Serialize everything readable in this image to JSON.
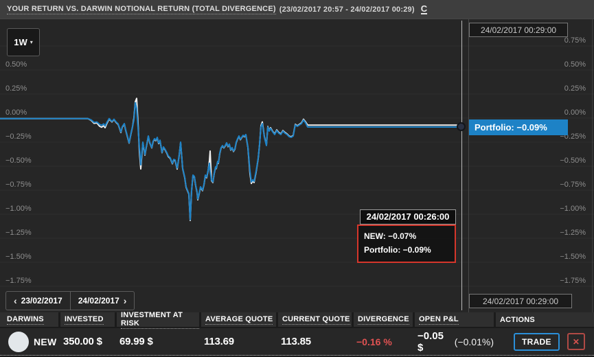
{
  "colors": {
    "accent_blue": "#1d82c6",
    "line_white": "#f0f0f0",
    "negative_red": "#e05252",
    "tooltip_red": "#d6362b"
  },
  "header": {
    "title": "YOUR RETURN VS. DARWIN NOTIONAL RETURN (TOTAL DIVERGENCE)",
    "range": "(23/02/2017 20:57 - 24/02/2017 00:29)",
    "refresh_label": "C"
  },
  "toolbar": {
    "period": "1W",
    "caret": "▾"
  },
  "crosshair": {
    "top_time": "24/02/2017 00:29:00",
    "bottom_time": "24/02/2017 00:29:00",
    "portfolio_badge": "Portfolio: −0.09%"
  },
  "tooltip": {
    "time": "24/02/2017 00:26:00",
    "rows": [
      "NEW: −0.07%",
      "Portfolio: −0.09%"
    ]
  },
  "date_nav": {
    "prev_chevron": "‹",
    "prev": "23/02/2017",
    "next": "24/02/2017",
    "next_chevron": "›"
  },
  "chart_data": {
    "type": "line",
    "title": "YOUR RETURN VS. DARWIN NOTIONAL RETURN (TOTAL DIVERGENCE)",
    "time_start": "23/02/2017 20:57",
    "time_end": "24/02/2017 00:29",
    "y_unit": "percent",
    "ylim": [
      -2.0,
      1.0
    ],
    "grid": true,
    "yticks": [
      [
        0.75,
        "0.75%"
      ],
      [
        0.5,
        "0.50%"
      ],
      [
        0.25,
        "0.25%"
      ],
      [
        0,
        "0.00%"
      ],
      [
        -0.25,
        "−0.25%"
      ],
      [
        -0.5,
        "−0.50%"
      ],
      [
        -0.75,
        "−0.75%"
      ],
      [
        -1,
        "−1.00%"
      ],
      [
        -1.25,
        "−1.25%"
      ],
      [
        -1.5,
        "−1.50%"
      ],
      [
        -1.75,
        "−1.75%"
      ]
    ],
    "last_point": {
      "time": "24/02/2017 00:29:00",
      "NEW": -0.07,
      "Portfolio": -0.09
    },
    "hover_point": {
      "time": "24/02/2017 00:26:00",
      "NEW": -0.07,
      "Portfolio": -0.09
    },
    "series": [
      {
        "name": "NEW",
        "color": "#f0f0f0",
        "points": [
          [
            0,
            -0.005
          ],
          [
            128,
            -0.005
          ],
          [
            133,
            -0.025
          ],
          [
            137,
            -0.055
          ],
          [
            141,
            -0.05
          ],
          [
            145,
            -0.085
          ],
          [
            148,
            -0.095
          ],
          [
            151,
            -0.08
          ],
          [
            153,
            -0.1
          ],
          [
            156,
            -0.05
          ],
          [
            159,
            -0.01
          ],
          [
            161,
            -0.025
          ],
          [
            163,
            -0.04
          ],
          [
            166,
            -0.015
          ],
          [
            169,
            -0.045
          ],
          [
            172,
            -0.065
          ],
          [
            174,
            -0.105
          ],
          [
            176,
            -0.15
          ],
          [
            178,
            -0.095
          ],
          [
            181,
            -0.06
          ],
          [
            183,
            -0.125
          ],
          [
            186,
            -0.205
          ],
          [
            188,
            -0.26
          ],
          [
            191,
            -0.155
          ],
          [
            193,
            -0.09
          ],
          [
            195,
            0.0
          ],
          [
            197,
            0.17
          ],
          [
            199,
            0.205
          ],
          [
            201,
            -0.05
          ],
          [
            203,
            -0.35
          ],
          [
            205,
            -0.529
          ],
          [
            208,
            -0.255
          ],
          [
            211,
            -0.385
          ],
          [
            213,
            -0.305
          ],
          [
            216,
            -0.19
          ],
          [
            218,
            -0.255
          ],
          [
            221,
            -0.31
          ],
          [
            223,
            -0.245
          ],
          [
            225,
            -0.22
          ],
          [
            227,
            -0.235
          ],
          [
            229,
            -0.205
          ],
          [
            231,
            -0.265
          ],
          [
            233,
            -0.235
          ],
          [
            236,
            -0.36
          ],
          [
            238,
            -0.305
          ],
          [
            240,
            -0.325
          ],
          [
            243,
            -0.365
          ],
          [
            245,
            -0.4
          ],
          [
            248,
            -0.42
          ],
          [
            251,
            -0.475
          ],
          [
            253,
            -0.435
          ],
          [
            255,
            -0.44
          ],
          [
            258,
            -0.53
          ],
          [
            261,
            -0.385
          ],
          [
            263,
            -0.255
          ],
          [
            266,
            -0.525
          ],
          [
            269,
            -0.62
          ],
          [
            271,
            -0.72
          ],
          [
            273,
            -0.755
          ],
          [
            275,
            -0.79
          ],
          [
            277,
            -1.065
          ],
          [
            279,
            -0.755
          ],
          [
            281,
            -0.6
          ],
          [
            283,
            -0.61
          ],
          [
            285,
            -0.705
          ],
          [
            287,
            -0.775
          ],
          [
            288,
            -0.85
          ],
          [
            290,
            -0.79
          ],
          [
            292,
            -0.72
          ],
          [
            295,
            -0.755
          ],
          [
            297,
            -0.695
          ],
          [
            299,
            -0.6
          ],
          [
            301,
            -0.62
          ],
          [
            303,
            -0.55
          ],
          [
            305,
            -0.44
          ],
          [
            306,
            -0.343
          ],
          [
            307,
            -0.5
          ],
          [
            308,
            -0.65
          ],
          [
            310,
            -0.67
          ],
          [
            312,
            -0.575
          ],
          [
            314,
            -0.51
          ],
          [
            315,
            -0.525
          ],
          [
            317,
            -0.455
          ],
          [
            318,
            -0.47
          ],
          [
            320,
            -0.37
          ],
          [
            322,
            -0.31
          ],
          [
            324,
            -0.29
          ],
          [
            326,
            -0.31
          ],
          [
            328,
            -0.29
          ],
          [
            330,
            -0.26
          ],
          [
            332,
            -0.297
          ],
          [
            334,
            -0.275
          ],
          [
            336,
            -0.333
          ],
          [
            338,
            -0.31
          ],
          [
            340,
            -0.347
          ],
          [
            342,
            -0.325
          ],
          [
            344,
            -0.255
          ],
          [
            346,
            -0.218
          ],
          [
            348,
            -0.19
          ],
          [
            350,
            -0.225
          ],
          [
            352,
            -0.204
          ],
          [
            354,
            -0.183
          ],
          [
            356,
            -0.194
          ],
          [
            358,
            -0.175
          ],
          [
            361,
            -0.305
          ],
          [
            364,
            -0.58
          ],
          [
            366,
            -0.68
          ],
          [
            368,
            -0.655
          ],
          [
            370,
            -0.67
          ],
          [
            373,
            -0.56
          ],
          [
            376,
            -0.42
          ],
          [
            378,
            -0.275
          ],
          [
            380,
            -0.08
          ],
          [
            382,
            -0.04
          ],
          [
            385,
            -0.195
          ],
          [
            388,
            -0.28
          ],
          [
            390,
            -0.088
          ],
          [
            392,
            -0.13
          ],
          [
            394,
            -0.1
          ],
          [
            397,
            -0.137
          ],
          [
            400,
            -0.165
          ],
          [
            403,
            -0.123
          ],
          [
            406,
            -0.15
          ],
          [
            409,
            -0.165
          ],
          [
            412,
            -0.13
          ],
          [
            415,
            -0.15
          ],
          [
            418,
            -0.165
          ],
          [
            421,
            -0.187
          ],
          [
            424,
            -0.194
          ],
          [
            427,
            -0.18
          ],
          [
            430,
            -0.065
          ],
          [
            433,
            -0.08
          ],
          [
            436,
            -0.065
          ],
          [
            439,
            -0.05
          ],
          [
            442,
            -0.012
          ],
          [
            445,
            -0.04
          ],
          [
            448,
            -0.073
          ],
          [
            672,
            -0.073
          ]
        ]
      },
      {
        "name": "Portfolio",
        "color": "#1d82c6",
        "points": [
          [
            0,
            -0.005
          ],
          [
            128,
            -0.005
          ],
          [
            133,
            -0.02
          ],
          [
            137,
            -0.045
          ],
          [
            141,
            -0.04
          ],
          [
            145,
            -0.065
          ],
          [
            148,
            -0.075
          ],
          [
            151,
            -0.06
          ],
          [
            153,
            -0.082
          ],
          [
            156,
            -0.04
          ],
          [
            159,
            -0.005
          ],
          [
            161,
            -0.02
          ],
          [
            163,
            -0.035
          ],
          [
            166,
            -0.012
          ],
          [
            169,
            -0.04
          ],
          [
            172,
            -0.06
          ],
          [
            174,
            -0.1
          ],
          [
            176,
            -0.145
          ],
          [
            178,
            -0.09
          ],
          [
            181,
            -0.057
          ],
          [
            183,
            -0.12
          ],
          [
            186,
            -0.2
          ],
          [
            188,
            -0.257
          ],
          [
            191,
            -0.15
          ],
          [
            193,
            -0.09
          ],
          [
            195,
            -0.02
          ],
          [
            197,
            0.16
          ],
          [
            199,
            0.1
          ],
          [
            201,
            -0.1
          ],
          [
            203,
            -0.3
          ],
          [
            205,
            -0.486
          ],
          [
            208,
            -0.25
          ],
          [
            211,
            -0.379
          ],
          [
            213,
            -0.3
          ],
          [
            216,
            -0.186
          ],
          [
            218,
            -0.25
          ],
          [
            221,
            -0.307
          ],
          [
            223,
            -0.24
          ],
          [
            225,
            -0.214
          ],
          [
            227,
            -0.23
          ],
          [
            229,
            -0.2
          ],
          [
            231,
            -0.26
          ],
          [
            233,
            -0.23
          ],
          [
            236,
            -0.357
          ],
          [
            238,
            -0.3
          ],
          [
            240,
            -0.321
          ],
          [
            243,
            -0.36
          ],
          [
            245,
            -0.393
          ],
          [
            248,
            -0.414
          ],
          [
            251,
            -0.471
          ],
          [
            253,
            -0.43
          ],
          [
            255,
            -0.436
          ],
          [
            258,
            -0.521
          ],
          [
            261,
            -0.379
          ],
          [
            263,
            -0.25
          ],
          [
            266,
            -0.521
          ],
          [
            269,
            -0.614
          ],
          [
            271,
            -0.714
          ],
          [
            273,
            -0.75
          ],
          [
            275,
            -0.786
          ],
          [
            277,
            -1.057
          ],
          [
            279,
            -0.75
          ],
          [
            281,
            -0.593
          ],
          [
            283,
            -0.607
          ],
          [
            285,
            -0.7
          ],
          [
            287,
            -0.77
          ],
          [
            288,
            -0.843
          ],
          [
            290,
            -0.786
          ],
          [
            292,
            -0.714
          ],
          [
            295,
            -0.75
          ],
          [
            297,
            -0.69
          ],
          [
            299,
            -0.593
          ],
          [
            301,
            -0.614
          ],
          [
            303,
            -0.543
          ],
          [
            305,
            -0.471
          ],
          [
            306,
            -0.557
          ],
          [
            308,
            -0.643
          ],
          [
            310,
            -0.664
          ],
          [
            312,
            -0.571
          ],
          [
            314,
            -0.507
          ],
          [
            315,
            -0.521
          ],
          [
            317,
            -0.45
          ],
          [
            318,
            -0.464
          ],
          [
            320,
            -0.364
          ],
          [
            322,
            -0.307
          ],
          [
            324,
            -0.286
          ],
          [
            326,
            -0.307
          ],
          [
            328,
            -0.286
          ],
          [
            330,
            -0.257
          ],
          [
            332,
            -0.293
          ],
          [
            334,
            -0.271
          ],
          [
            336,
            -0.329
          ],
          [
            338,
            -0.307
          ],
          [
            340,
            -0.343
          ],
          [
            342,
            -0.32
          ],
          [
            344,
            -0.25
          ],
          [
            346,
            -0.214
          ],
          [
            348,
            -0.186
          ],
          [
            350,
            -0.221
          ],
          [
            352,
            -0.2
          ],
          [
            354,
            -0.179
          ],
          [
            356,
            -0.19
          ],
          [
            358,
            -0.171
          ],
          [
            361,
            -0.3
          ],
          [
            364,
            -0.55
          ],
          [
            366,
            -0.664
          ],
          [
            368,
            -0.643
          ],
          [
            370,
            -0.657
          ],
          [
            373,
            -0.55
          ],
          [
            376,
            -0.414
          ],
          [
            378,
            -0.271
          ],
          [
            380,
            -0.093
          ],
          [
            382,
            -0.057
          ],
          [
            385,
            -0.2
          ],
          [
            388,
            -0.286
          ],
          [
            390,
            -0.093
          ],
          [
            392,
            -0.136
          ],
          [
            394,
            -0.107
          ],
          [
            397,
            -0.143
          ],
          [
            400,
            -0.171
          ],
          [
            403,
            -0.129
          ],
          [
            406,
            -0.157
          ],
          [
            409,
            -0.171
          ],
          [
            412,
            -0.136
          ],
          [
            415,
            -0.157
          ],
          [
            418,
            -0.171
          ],
          [
            421,
            -0.193
          ],
          [
            424,
            -0.2
          ],
          [
            427,
            -0.186
          ],
          [
            430,
            -0.071
          ],
          [
            433,
            -0.086
          ],
          [
            436,
            -0.071
          ],
          [
            439,
            -0.057
          ],
          [
            442,
            -0.021
          ],
          [
            445,
            -0.05
          ],
          [
            448,
            -0.093
          ],
          [
            672,
            -0.093
          ]
        ]
      }
    ]
  },
  "table": {
    "columns": [
      {
        "key": "darwins",
        "label": "DARWINS",
        "dotted": true
      },
      {
        "key": "invested",
        "label": "INVESTED",
        "dotted": true
      },
      {
        "key": "investment_at_risk",
        "label": "INVESTMENT AT RISK",
        "dotted": true
      },
      {
        "key": "average_quote",
        "label": "AVERAGE QUOTE",
        "dotted": true
      },
      {
        "key": "current_quote",
        "label": "CURRENT QUOTE",
        "dotted": true
      },
      {
        "key": "divergence",
        "label": "DIVERGENCE",
        "dotted": true
      },
      {
        "key": "open_pl",
        "label": "OPEN P&L",
        "dotted": true
      },
      {
        "key": "actions",
        "label": "ACTIONS",
        "dotted": false
      }
    ],
    "row": {
      "darwin_name": "NEW",
      "invested": "350.00 $",
      "investment_at_risk": "69.99 $",
      "average_quote": "113.69",
      "current_quote": "113.85",
      "divergence": "−0.16 %",
      "open_pl_main": "−0.05 $",
      "open_pl_pct": "(−0.01%)",
      "trade_label": "TRADE",
      "close_icon": "✕"
    }
  }
}
